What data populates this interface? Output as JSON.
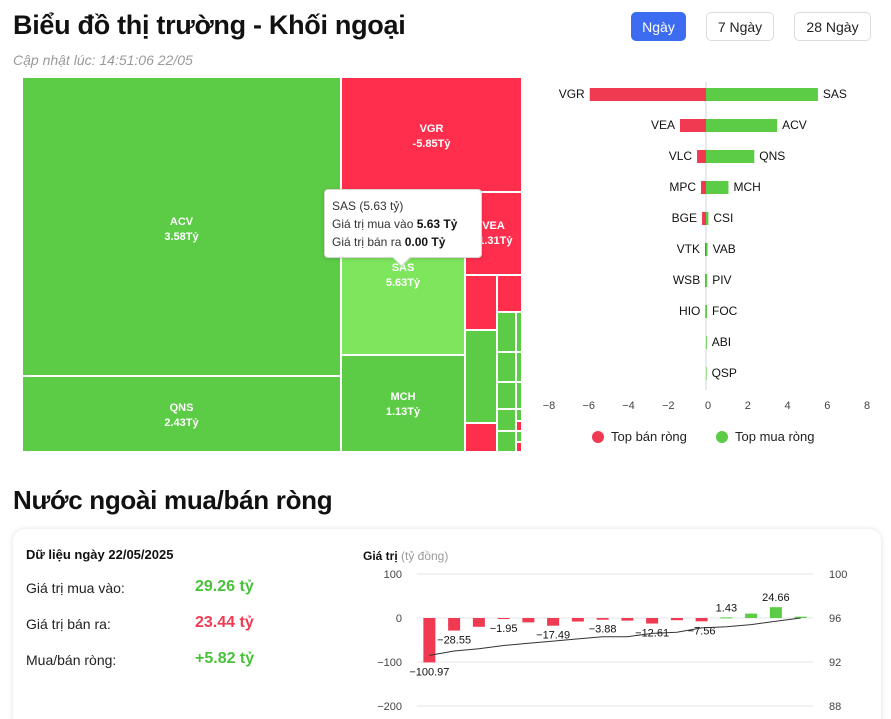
{
  "header": {
    "title": "Biểu đồ thị trường - Khối ngoại",
    "updated": "Cập nhật lúc: 14:51:06 22/05"
  },
  "tabs": [
    {
      "label": "Ngày",
      "active": true
    },
    {
      "label": "7 Ngày",
      "active": false
    },
    {
      "label": "28 Ngày",
      "active": false
    }
  ],
  "treemap": {
    "tiles": [
      {
        "name": "ACV",
        "value": "3.58Tỷ",
        "color": "green"
      },
      {
        "name": "QNS",
        "value": "2.43Tỷ",
        "color": "green"
      },
      {
        "name": "VGR",
        "value": "-5.85Tỷ",
        "color": "red"
      },
      {
        "name": "SAS",
        "value": "5.63Tỷ",
        "color": "highlight"
      },
      {
        "name": "VEA",
        "value": "-1.31Tỷ",
        "color": "red"
      },
      {
        "name": "MCH",
        "value": "1.13Tỷ",
        "color": "green"
      }
    ],
    "tooltip": {
      "title": "SAS (5.63 tỷ)",
      "buy_label": "Giá trị mua vào",
      "buy_value": "5.63 Tỷ",
      "sell_label": "Giá trị bán ra",
      "sell_value": "0.00 Tỷ"
    }
  },
  "hbar_chart": {
    "type": "bar",
    "orientation": "horizontal",
    "rows": [
      {
        "sell": "VGR",
        "sell_value": -5.85,
        "buy": "SAS",
        "buy_value": 5.63
      },
      {
        "sell": "VEA",
        "sell_value": -1.31,
        "buy": "ACV",
        "buy_value": 3.58
      },
      {
        "sell": "VLC",
        "sell_value": -0.45,
        "buy": "QNS",
        "buy_value": 2.43
      },
      {
        "sell": "MPC",
        "sell_value": -0.25,
        "buy": "MCH",
        "buy_value": 1.13
      },
      {
        "sell": "BGE",
        "sell_value": -0.2,
        "buy": "CSI",
        "buy_value": 0.12
      },
      {
        "sell": "VTK",
        "sell_value": -0.05,
        "buy": "VAB",
        "buy_value": 0.08
      },
      {
        "sell": "WSB",
        "sell_value": -0.04,
        "buy": "PIV",
        "buy_value": 0.06
      },
      {
        "sell": "HIO",
        "sell_value": -0.03,
        "buy": "FOC",
        "buy_value": 0.05
      },
      {
        "sell": "",
        "sell_value": 0,
        "buy": "ABI",
        "buy_value": 0.04
      },
      {
        "sell": "",
        "sell_value": 0,
        "buy": "QSP",
        "buy_value": 0.03
      }
    ],
    "xlim": [
      -8,
      8
    ],
    "xticks": [
      "−8",
      "−6",
      "−4",
      "−2",
      "0",
      "2",
      "4",
      "6",
      "8"
    ],
    "legend": [
      {
        "label": "Top bán ròng",
        "color": "#ef3a52"
      },
      {
        "label": "Top mua ròng",
        "color": "#5ccb45"
      }
    ],
    "sell_color": "#ef3a52",
    "buy_color": "#5ccb45"
  },
  "section2": {
    "title": "Nước ngoài mua/bán ròng",
    "card_title": "Dữ liệu ngày 22/05/2025",
    "buy_label": "Giá trị mua vào:",
    "buy_value": "29.26 tỷ",
    "sell_label": "Giá trị bán ra:",
    "sell_value": "23.44 tỷ",
    "net_label": "Mua/bán ròng:",
    "net_value": "+5.82 tỷ"
  },
  "chart_data": {
    "type": "bar",
    "ylabel": "Giá trị",
    "ylabel_unit": "(tỷ đồng)",
    "ylim": [
      -200,
      100
    ],
    "yticks": [
      "100",
      "0",
      "−100",
      "−200"
    ],
    "y2lim": [
      88,
      100
    ],
    "y2ticks": [
      "100",
      "96",
      "92",
      "88"
    ],
    "values": [
      -100.97,
      -28.55,
      -20,
      -1.95,
      -10,
      -17.49,
      -8,
      -3.88,
      -6,
      -12.61,
      -5,
      -7.56,
      1.43,
      10,
      24.66,
      3
    ],
    "labels": [
      "−100.97",
      "−28.55",
      "",
      "−1.95",
      "",
      "−17.49",
      "",
      "−3.88",
      "",
      "−12.61",
      "",
      "−7.56",
      "1.43",
      "",
      "24.66",
      ""
    ],
    "line": [
      92.6,
      93.0,
      93.2,
      93.5,
      93.7,
      93.9,
      94.1,
      94.3,
      94.3,
      94.6,
      94.7,
      95.1,
      95.2,
      95.4,
      95.7,
      96.0
    ],
    "pos_color": "#5ccb45",
    "neg_color": "#ef3a52",
    "line_color": "#333333"
  }
}
